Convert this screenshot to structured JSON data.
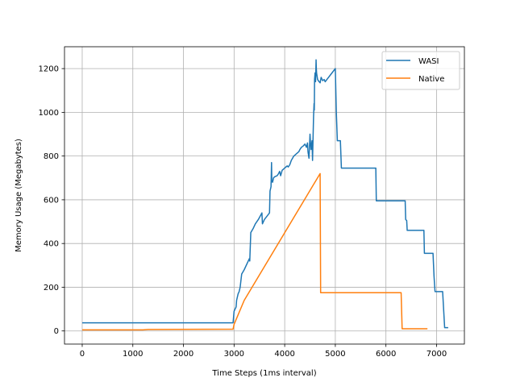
{
  "chart_data": {
    "type": "line",
    "title": "",
    "xlabel": "Time Steps (1ms interval)",
    "ylabel": "Memory Usage (Megabytes)",
    "xlim": [
      -350,
      7550
    ],
    "ylim": [
      -60,
      1300
    ],
    "xticks": [
      0,
      1000,
      2000,
      3000,
      4000,
      5000,
      6000,
      7000
    ],
    "yticks": [
      0,
      200,
      400,
      600,
      800,
      1000,
      1200
    ],
    "grid": true,
    "legend_position": "top-right",
    "series": [
      {
        "name": "WASI",
        "color": "#1f77b4",
        "points": [
          [
            0,
            37
          ],
          [
            2980,
            37
          ],
          [
            3000,
            90
          ],
          [
            3020,
            100
          ],
          [
            3040,
            110
          ],
          [
            3050,
            140
          ],
          [
            3080,
            170
          ],
          [
            3100,
            180
          ],
          [
            3120,
            200
          ],
          [
            3150,
            260
          ],
          [
            3200,
            280
          ],
          [
            3280,
            320
          ],
          [
            3300,
            330
          ],
          [
            3310,
            320
          ],
          [
            3330,
            450
          ],
          [
            3380,
            470
          ],
          [
            3420,
            490
          ],
          [
            3480,
            510
          ],
          [
            3550,
            540
          ],
          [
            3560,
            490
          ],
          [
            3600,
            510
          ],
          [
            3650,
            525
          ],
          [
            3700,
            540
          ],
          [
            3710,
            640
          ],
          [
            3730,
            660
          ],
          [
            3740,
            770
          ],
          [
            3745,
            690
          ],
          [
            3760,
            680
          ],
          [
            3780,
            700
          ],
          [
            3800,
            705
          ],
          [
            3850,
            710
          ],
          [
            3880,
            720
          ],
          [
            3900,
            730
          ],
          [
            3920,
            710
          ],
          [
            3950,
            735
          ],
          [
            4000,
            745
          ],
          [
            4050,
            755
          ],
          [
            4070,
            750
          ],
          [
            4100,
            760
          ],
          [
            4130,
            780
          ],
          [
            4180,
            800
          ],
          [
            4230,
            810
          ],
          [
            4280,
            820
          ],
          [
            4300,
            830
          ],
          [
            4330,
            840
          ],
          [
            4360,
            845
          ],
          [
            4400,
            855
          ],
          [
            4430,
            840
          ],
          [
            4450,
            860
          ],
          [
            4460,
            820
          ],
          [
            4480,
            790
          ],
          [
            4500,
            900
          ],
          [
            4510,
            860
          ],
          [
            4520,
            830
          ],
          [
            4540,
            870
          ],
          [
            4550,
            780
          ],
          [
            4560,
            880
          ],
          [
            4570,
            980
          ],
          [
            4580,
            1040
          ],
          [
            4585,
            1010
          ],
          [
            4590,
            1150
          ],
          [
            4600,
            1180
          ],
          [
            4610,
            1140
          ],
          [
            4620,
            1240
          ],
          [
            4625,
            1200
          ],
          [
            4630,
            1180
          ],
          [
            4650,
            1150
          ],
          [
            4680,
            1140
          ],
          [
            4700,
            1135
          ],
          [
            4720,
            1160
          ],
          [
            4750,
            1145
          ],
          [
            4780,
            1150
          ],
          [
            4800,
            1140
          ],
          [
            4850,
            1155
          ],
          [
            4900,
            1170
          ],
          [
            5000,
            1200
          ],
          [
            5020,
            1000
          ],
          [
            5040,
            870
          ],
          [
            5100,
            870
          ],
          [
            5120,
            745
          ],
          [
            5800,
            745
          ],
          [
            5810,
            595
          ],
          [
            6380,
            595
          ],
          [
            6390,
            510
          ],
          [
            6410,
            505
          ],
          [
            6420,
            460
          ],
          [
            6750,
            460
          ],
          [
            6760,
            355
          ],
          [
            6930,
            355
          ],
          [
            6950,
            250
          ],
          [
            6970,
            180
          ],
          [
            7120,
            180
          ],
          [
            7160,
            15
          ],
          [
            7230,
            15
          ]
        ]
      },
      {
        "name": "Native",
        "color": "#ff7f0e",
        "points": [
          [
            0,
            5
          ],
          [
            1200,
            5
          ],
          [
            1300,
            7
          ],
          [
            2980,
            8
          ],
          [
            3000,
            30
          ],
          [
            3200,
            140
          ],
          [
            4700,
            720
          ],
          [
            4710,
            175
          ],
          [
            6300,
            175
          ],
          [
            6320,
            10
          ],
          [
            6820,
            10
          ]
        ]
      }
    ]
  }
}
